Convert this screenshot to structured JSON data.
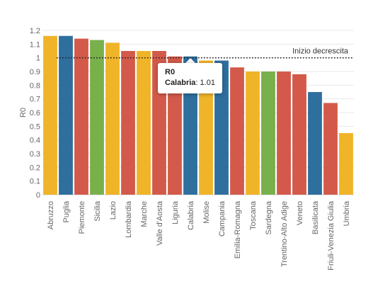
{
  "chart_data": {
    "type": "bar",
    "ylabel": "R0",
    "ylim": [
      0,
      1.2
    ],
    "yticks": [
      "0",
      "0.1",
      "0.2",
      "0.3",
      "0.4",
      "0.5",
      "0.6",
      "0.7",
      "0.8",
      "0.9",
      "1",
      "1.1",
      "1.2"
    ],
    "grid": true,
    "categories": [
      "Abruzzo",
      "Puglia",
      "Piemonte",
      "Sicilia",
      "Lazio",
      "Lombardia",
      "Marche",
      "Valle d'Aosta",
      "Liguria",
      "Calabria",
      "Molise",
      "Campania",
      "Emilia-Romagna",
      "Toscana",
      "Sardegna",
      "Trentino-Alto Adige",
      "Veneto",
      "Basilicata",
      "Friuli-Venezia Giulia",
      "Umbria"
    ],
    "values": [
      1.16,
      1.16,
      1.14,
      1.13,
      1.11,
      1.05,
      1.05,
      1.05,
      1.01,
      1.01,
      0.98,
      0.98,
      0.93,
      0.9,
      0.9,
      0.9,
      0.88,
      0.75,
      0.67,
      0.45
    ],
    "colors": [
      "#f0b429",
      "#2e6f9e",
      "#d35a4a",
      "#78b04c",
      "#f0b429",
      "#d35a4a",
      "#f0b429",
      "#d35a4a",
      "#d35a4a",
      "#2e6f9e",
      "#f0b429",
      "#2e6f9e",
      "#d35a4a",
      "#f0b429",
      "#78b04c",
      "#d35a4a",
      "#d35a4a",
      "#2e6f9e",
      "#d35a4a",
      "#f0b429"
    ],
    "reference_line": {
      "value": 1,
      "label": "Inizio decrescita",
      "style": "dotted"
    },
    "tooltip": {
      "title": "R0",
      "name": "Calabria",
      "value": "1.01"
    }
  }
}
